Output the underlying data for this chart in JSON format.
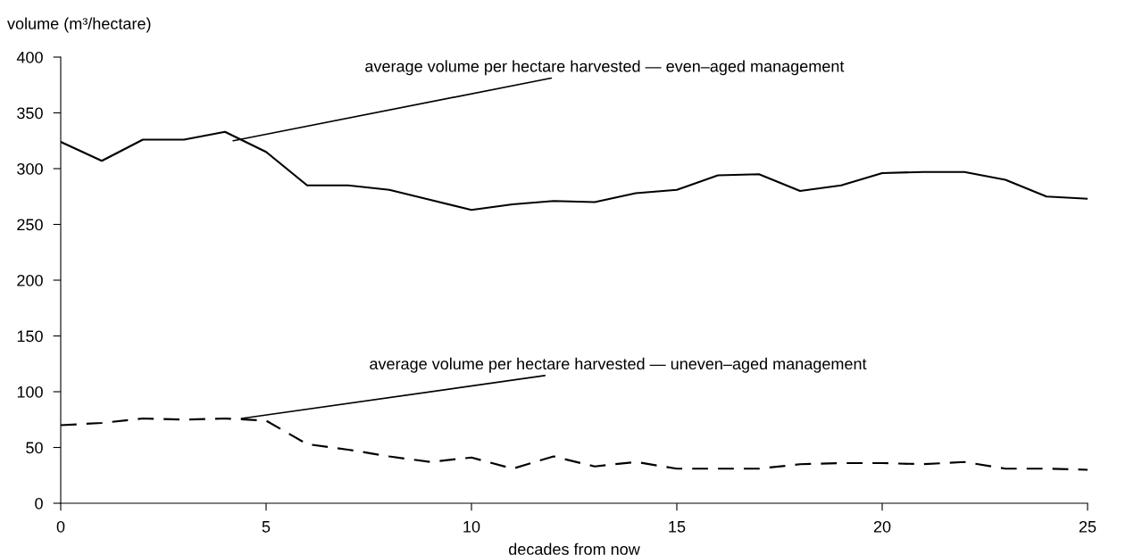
{
  "chart_data": {
    "type": "line",
    "ylabel": "volume (m³/hectare)",
    "xlabel": "decades from now",
    "x": [
      0,
      1,
      2,
      3,
      4,
      5,
      6,
      7,
      8,
      9,
      10,
      11,
      12,
      13,
      14,
      15,
      16,
      17,
      18,
      19,
      20,
      21,
      22,
      23,
      24,
      25
    ],
    "series": [
      {
        "color": "#000000",
        "line_style": "solid",
        "values": [
          324,
          307,
          326,
          326,
          333,
          315,
          285,
          285,
          281,
          272,
          263,
          268,
          271,
          270,
          278,
          281,
          294,
          295,
          280,
          285,
          296,
          297,
          297,
          290,
          275,
          273
        ]
      },
      {
        "color": "#000000",
        "line_style": "dashed",
        "values": [
          70,
          72,
          76,
          75,
          76,
          74,
          53,
          48,
          42,
          37,
          41,
          31,
          42,
          33,
          37,
          31,
          31,
          31,
          35,
          36,
          36,
          35,
          37,
          31,
          31,
          30
        ]
      }
    ],
    "annotations": [
      {
        "text": "average volume per hectare harvested — even–aged management",
        "x": 4.2,
        "y": 325
      },
      {
        "text": "average volume per hectare harvested — uneven–aged management",
        "x": 4.4,
        "y": 76
      }
    ],
    "xlim": [
      0,
      25
    ],
    "xticks": [
      0,
      5,
      10,
      15,
      20,
      25
    ],
    "ylim": [
      0,
      400
    ],
    "yticks": [
      0,
      50,
      100,
      150,
      200,
      250,
      300,
      350,
      400
    ],
    "grid": false,
    "legend": false
  }
}
